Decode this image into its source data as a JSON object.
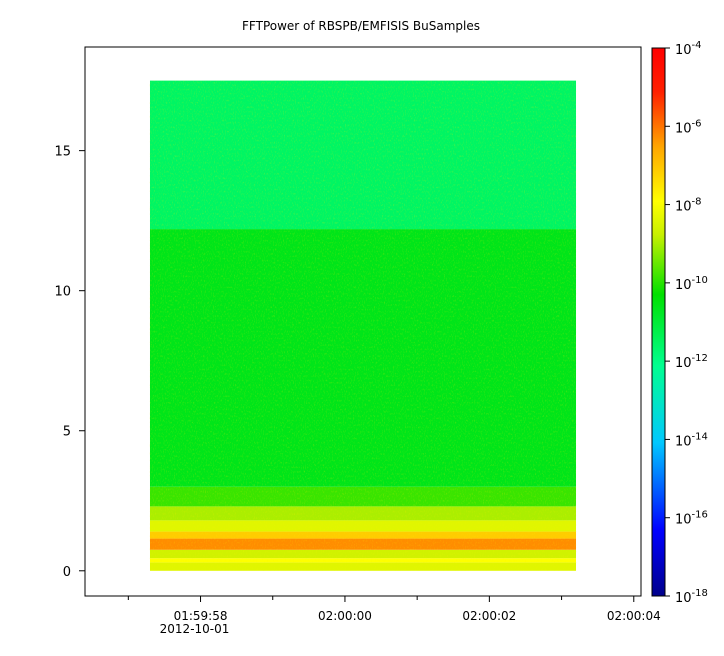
{
  "chart_data": {
    "type": "heatmap",
    "title": "FFTPower of RBSPB/EMFISIS  BuSamples",
    "xlabel": "",
    "ylabel": "",
    "x_ticks": [
      {
        "label": "01:59:58",
        "sublabel": "2012-10-01",
        "t": 0
      },
      {
        "label": "02:00:00",
        "sublabel": "",
        "t": 2
      },
      {
        "label": "02:00:02",
        "sublabel": "",
        "t": 4
      },
      {
        "label": "02:00:04",
        "sublabel": "",
        "t": 6
      }
    ],
    "x_minor_ticks_seconds": [
      -1,
      1,
      3,
      5
    ],
    "xlim_seconds": [
      -1.6,
      6.1
    ],
    "data_xrange_seconds": [
      -0.7,
      5.2
    ],
    "y_ticks": [
      0,
      5,
      10,
      15
    ],
    "ylim": [
      -0.9,
      18.7
    ],
    "data_yrange": [
      0,
      17.5
    ],
    "colorbar": {
      "scale": "log",
      "range_exponent": [
        -18,
        -4
      ],
      "tick_labels": [
        {
          "base": "10",
          "exp": "-4"
        },
        {
          "base": "10",
          "exp": "-6"
        },
        {
          "base": "10",
          "exp": "-8"
        },
        {
          "base": "10",
          "exp": "-10"
        },
        {
          "base": "10",
          "exp": "-12"
        },
        {
          "base": "10",
          "exp": "-14"
        },
        {
          "base": "10",
          "exp": "-16"
        },
        {
          "base": "10",
          "exp": "-18"
        }
      ],
      "colors": [
        "#00008b",
        "#0000ff",
        "#00c8ff",
        "#00ff90",
        "#00e000",
        "#c8f000",
        "#ffff00",
        "#ffa500",
        "#ff0000"
      ]
    },
    "bands": [
      {
        "y_min": 0.0,
        "y_max": 0.3,
        "log_power": -8.5
      },
      {
        "y_min": 0.3,
        "y_max": 0.45,
        "log_power": -7.5
      },
      {
        "y_min": 0.45,
        "y_max": 0.75,
        "log_power": -9.0
      },
      {
        "y_min": 0.75,
        "y_max": 1.15,
        "log_power": -5.5
      },
      {
        "y_min": 1.15,
        "y_max": 1.4,
        "log_power": -6.5
      },
      {
        "y_min": 1.4,
        "y_max": 1.8,
        "log_power": -8.5
      },
      {
        "y_min": 1.8,
        "y_max": 2.3,
        "log_power": -9.5
      },
      {
        "y_min": 2.3,
        "y_max": 3.0,
        "log_power": -10.5
      },
      {
        "y_min": 3.0,
        "y_max": 12.2,
        "log_power": -11.3
      },
      {
        "y_min": 12.2,
        "y_max": 17.5,
        "log_power": -12.2
      }
    ]
  }
}
